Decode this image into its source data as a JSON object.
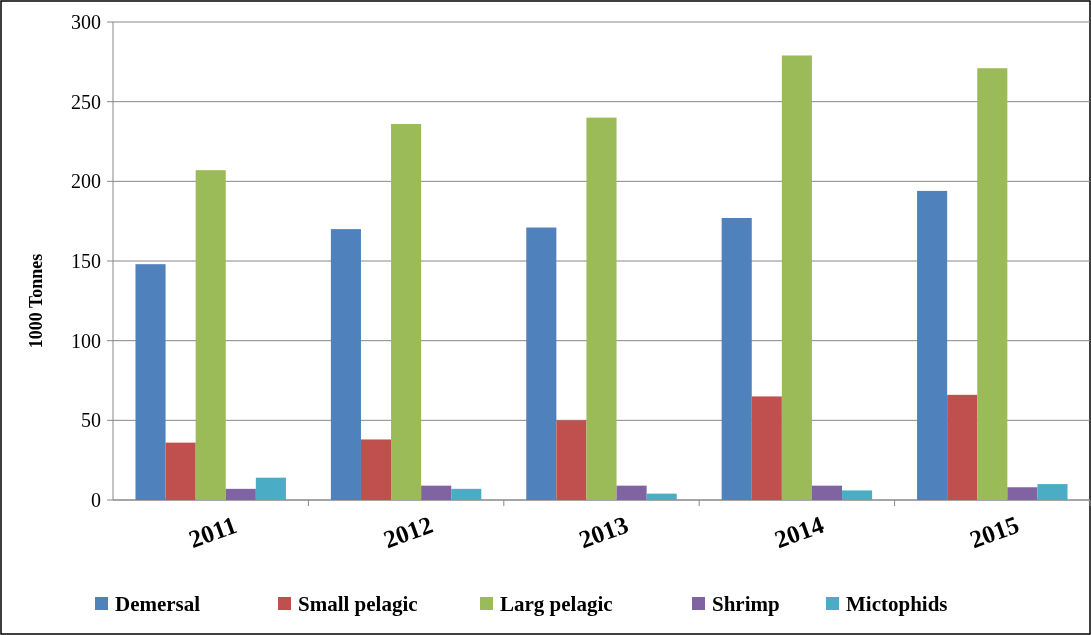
{
  "chart_data": {
    "type": "bar",
    "ylabel": "1000 Tonnes",
    "categories": [
      "2011",
      "2012",
      "2013",
      "2014",
      "2015"
    ],
    "series": [
      {
        "name": "Demersal",
        "color": "#4f81bd",
        "values": [
          148,
          170,
          171,
          177,
          194
        ]
      },
      {
        "name": "Small pelagic",
        "color": "#c0504d",
        "values": [
          36,
          38,
          50,
          65,
          66
        ]
      },
      {
        "name": "Larg pelagic",
        "color": "#9bbb59",
        "values": [
          207,
          236,
          240,
          279,
          271
        ]
      },
      {
        "name": "Shrimp",
        "color": "#8064a2",
        "values": [
          7,
          9,
          9,
          9,
          8
        ]
      },
      {
        "name": "Mictophids",
        "color": "#4bacc6",
        "values": [
          14,
          7,
          4,
          6,
          10
        ]
      }
    ],
    "ylim": [
      0,
      300
    ],
    "yticks": [
      0,
      50,
      100,
      150,
      200,
      250,
      300
    ],
    "grid": "y",
    "legend": "bottom"
  }
}
